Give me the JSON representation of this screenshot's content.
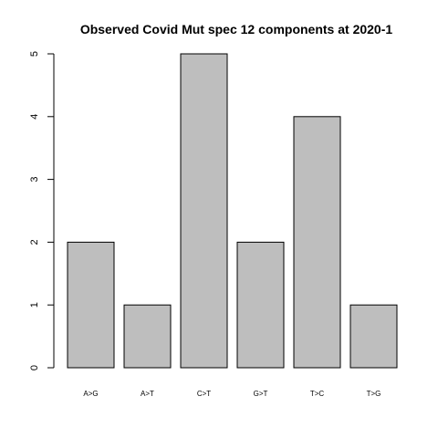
{
  "chart_data": {
    "type": "bar",
    "title": "Observed Covid Mut spec 12 components at 2020-1",
    "xlabel": "",
    "ylabel": "",
    "categories": [
      "A>G",
      "A>T",
      "C>T",
      "G>T",
      "T>C",
      "T>G"
    ],
    "values": [
      2,
      1,
      5,
      2,
      4,
      1
    ],
    "ylim": [
      0,
      5
    ],
    "yticks": [
      "0",
      "1",
      "2",
      "3",
      "4",
      "5"
    ],
    "grid": false,
    "legend": "none",
    "colors": {
      "bar_fill": "#bebebe",
      "bar_stroke": "#000000",
      "axis": "#000000",
      "background": "#ffffff"
    }
  }
}
